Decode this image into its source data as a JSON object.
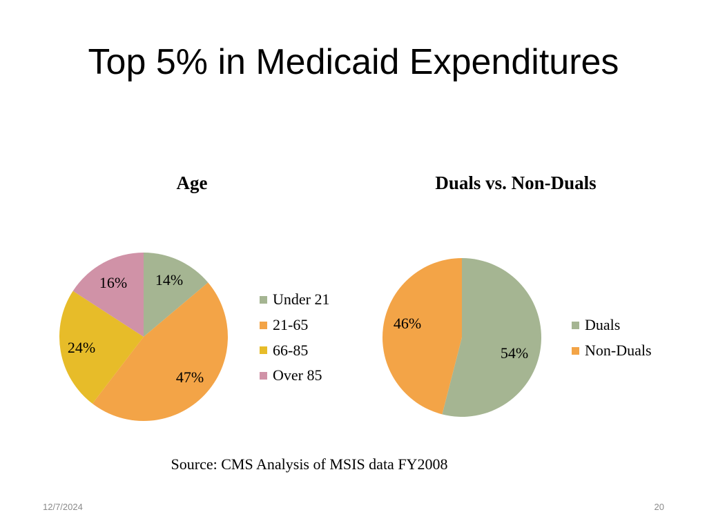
{
  "slide": {
    "title": "Top 5% in Medicaid Expenditures",
    "source": "Source: CMS Analysis of MSIS data FY2008",
    "date": "12/7/2024",
    "page_number": "20"
  },
  "chart_data": [
    {
      "type": "pie",
      "title": "Age",
      "categories": [
        "Under 21",
        "21-65",
        "66-85",
        "Over 85"
      ],
      "values": [
        14,
        47,
        24,
        16
      ],
      "data_labels": [
        "14%",
        "47%",
        "24%",
        "16%"
      ],
      "colors": [
        "#A5B592",
        "#F3A447",
        "#E7BC29",
        "#D092A7"
      ],
      "legend_position": "right"
    },
    {
      "type": "pie",
      "title": "Duals vs. Non-Duals",
      "categories": [
        "Duals",
        "Non-Duals"
      ],
      "values": [
        54,
        46
      ],
      "data_labels": [
        "54%",
        "46%"
      ],
      "colors": [
        "#A5B592",
        "#F3A447"
      ],
      "legend_position": "right"
    }
  ]
}
